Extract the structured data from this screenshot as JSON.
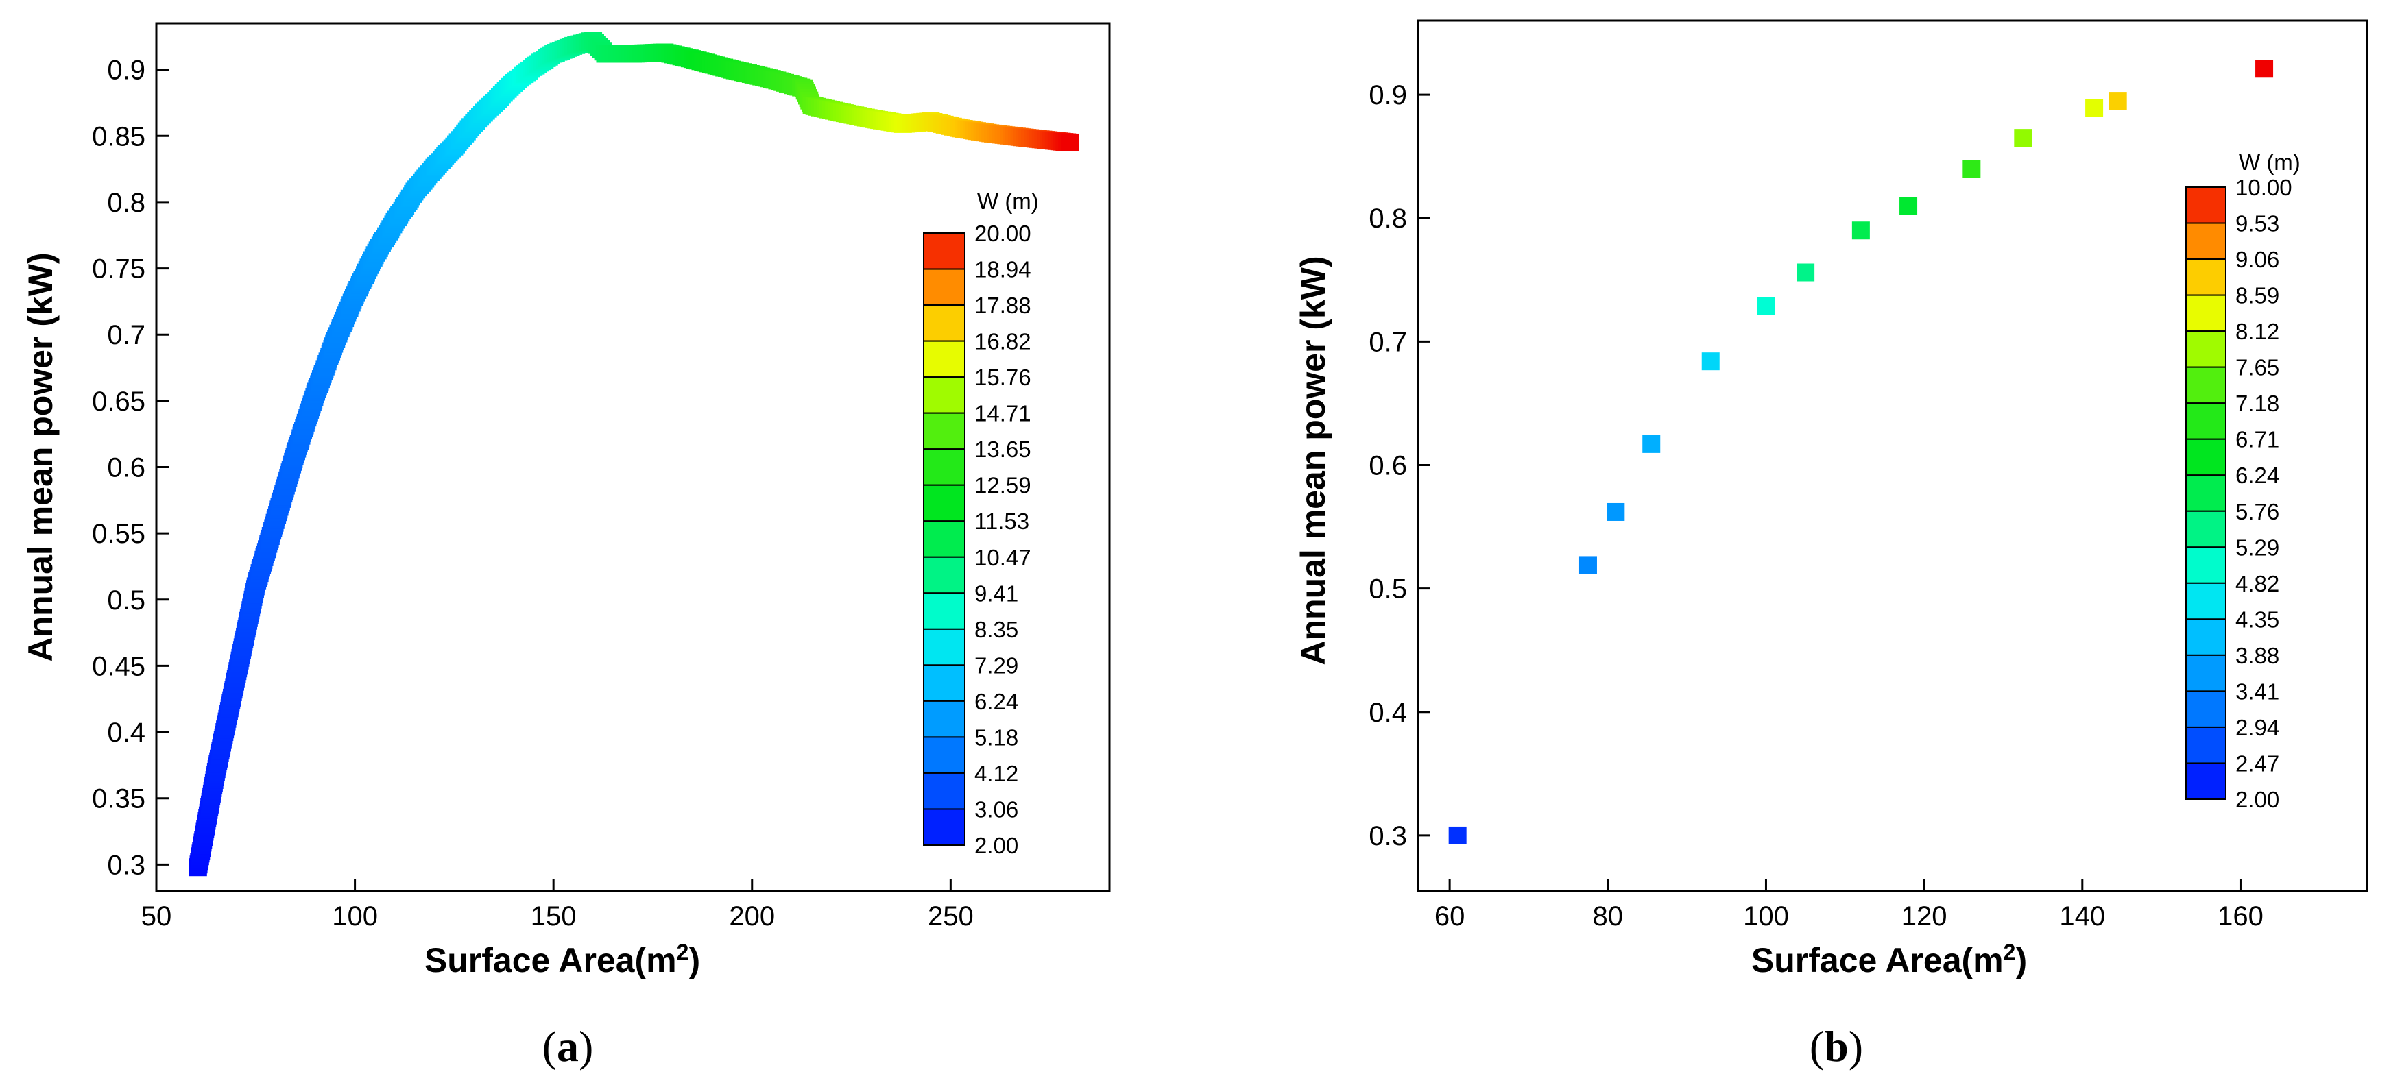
{
  "chart_data": [
    {
      "type": "scatter",
      "panel_label": "a",
      "xlabel": "Surface Area",
      "xlabel_unit": "(m",
      "xlabel_sup": "2",
      "xlabel_close": ")",
      "ylabel": "Annual mean power (kW)",
      "xlim": [
        50,
        290
      ],
      "ylim": [
        0.28,
        0.935
      ],
      "xticks": [
        50,
        100,
        150,
        200,
        250
      ],
      "yticks": [
        0.3,
        0.35,
        0.4,
        0.45,
        0.5,
        0.55,
        0.6,
        0.65,
        0.7,
        0.75,
        0.8,
        0.85,
        0.9
      ],
      "ytick_labels": [
        "0.3",
        "0.35",
        "0.4",
        "0.45",
        "0.5",
        "0.55",
        "0.6",
        "0.65",
        "0.7",
        "0.75",
        "0.8",
        "0.85",
        "0.9"
      ],
      "legend_title": "W (m)",
      "legend_position": "right",
      "legend_levels": [
        "20.00",
        "18.94",
        "17.88",
        "16.82",
        "15.76",
        "14.71",
        "13.65",
        "12.59",
        "11.53",
        "10.47",
        "9.41",
        "8.35",
        "7.29",
        "6.24",
        "5.18",
        "4.12",
        "3.06",
        "2.00"
      ],
      "color_range": [
        2.0,
        20.0
      ],
      "curve": [
        {
          "x": 60.5,
          "y": 0.298,
          "w": 2.0
        },
        {
          "x": 65,
          "y": 0.37,
          "w": 2.6
        },
        {
          "x": 70,
          "y": 0.44,
          "w": 3.0
        },
        {
          "x": 75,
          "y": 0.51,
          "w": 3.6
        },
        {
          "x": 80,
          "y": 0.56,
          "w": 3.9
        },
        {
          "x": 85,
          "y": 0.61,
          "w": 4.2
        },
        {
          "x": 90,
          "y": 0.655,
          "w": 4.6
        },
        {
          "x": 95,
          "y": 0.695,
          "w": 5.0
        },
        {
          "x": 100,
          "y": 0.73,
          "w": 5.3
        },
        {
          "x": 105,
          "y": 0.76,
          "w": 5.7
        },
        {
          "x": 110,
          "y": 0.785,
          "w": 6.0
        },
        {
          "x": 115,
          "y": 0.808,
          "w": 6.3
        },
        {
          "x": 120,
          "y": 0.826,
          "w": 6.6
        },
        {
          "x": 125,
          "y": 0.842,
          "w": 7.0
        },
        {
          "x": 130,
          "y": 0.86,
          "w": 7.4
        },
        {
          "x": 135,
          "y": 0.875,
          "w": 7.8
        },
        {
          "x": 140,
          "y": 0.89,
          "w": 8.3
        },
        {
          "x": 145,
          "y": 0.902,
          "w": 8.8
        },
        {
          "x": 150,
          "y": 0.912,
          "w": 9.3
        },
        {
          "x": 155,
          "y": 0.918,
          "w": 9.8
        },
        {
          "x": 160,
          "y": 0.922,
          "w": 10.3
        },
        {
          "x": 163,
          "y": 0.912,
          "w": 10.6
        },
        {
          "x": 170,
          "y": 0.912,
          "w": 11.0
        },
        {
          "x": 178,
          "y": 0.913,
          "w": 11.5
        },
        {
          "x": 185,
          "y": 0.908,
          "w": 12.0
        },
        {
          "x": 195,
          "y": 0.9,
          "w": 12.6
        },
        {
          "x": 205,
          "y": 0.893,
          "w": 13.3
        },
        {
          "x": 213,
          "y": 0.886,
          "w": 14.0
        },
        {
          "x": 215,
          "y": 0.873,
          "w": 14.3
        },
        {
          "x": 222,
          "y": 0.868,
          "w": 14.9
        },
        {
          "x": 230,
          "y": 0.863,
          "w": 15.6
        },
        {
          "x": 238,
          "y": 0.859,
          "w": 16.2
        },
        {
          "x": 245,
          "y": 0.861,
          "w": 16.8
        },
        {
          "x": 252,
          "y": 0.856,
          "w": 17.4
        },
        {
          "x": 260,
          "y": 0.852,
          "w": 18.2
        },
        {
          "x": 268,
          "y": 0.849,
          "w": 18.9
        },
        {
          "x": 274,
          "y": 0.847,
          "w": 19.4
        },
        {
          "x": 280,
          "y": 0.845,
          "w": 20.0
        }
      ]
    },
    {
      "type": "scatter",
      "panel_label": "b",
      "xlabel": "Surface Area",
      "xlabel_unit": "(m",
      "xlabel_sup": "2",
      "xlabel_close": ")",
      "ylabel": "Annual mean power (kW)",
      "xlim": [
        56,
        176
      ],
      "ylim": [
        0.255,
        0.96
      ],
      "xticks": [
        60,
        80,
        100,
        120,
        140,
        160
      ],
      "yticks": [
        0.3,
        0.4,
        0.5,
        0.6,
        0.7,
        0.8,
        0.9
      ],
      "ytick_labels": [
        "0.3",
        "0.4",
        "0.5",
        "0.6",
        "0.7",
        "0.8",
        "0.9"
      ],
      "legend_title": "W (m)",
      "legend_position": "right",
      "legend_levels": [
        "10.00",
        "9.53",
        "9.06",
        "8.59",
        "8.12",
        "7.65",
        "7.18",
        "6.71",
        "6.24",
        "5.76",
        "5.29",
        "4.82",
        "4.35",
        "3.88",
        "3.41",
        "2.94",
        "2.47",
        "2.00"
      ],
      "color_range": [
        2.0,
        10.0
      ],
      "points": [
        {
          "x": 61,
          "y": 0.3,
          "w": 2.4
        },
        {
          "x": 77.5,
          "y": 0.519,
          "w": 3.4
        },
        {
          "x": 81,
          "y": 0.562,
          "w": 3.6
        },
        {
          "x": 85.5,
          "y": 0.617,
          "w": 3.9
        },
        {
          "x": 93,
          "y": 0.684,
          "w": 4.4
        },
        {
          "x": 100,
          "y": 0.729,
          "w": 5.0
        },
        {
          "x": 105,
          "y": 0.756,
          "w": 5.5
        },
        {
          "x": 112,
          "y": 0.79,
          "w": 6.0
        },
        {
          "x": 118,
          "y": 0.81,
          "w": 6.3
        },
        {
          "x": 126,
          "y": 0.84,
          "w": 7.1
        },
        {
          "x": 132.5,
          "y": 0.865,
          "w": 7.8
        },
        {
          "x": 141.5,
          "y": 0.889,
          "w": 8.3
        },
        {
          "x": 144.5,
          "y": 0.895,
          "w": 8.8
        },
        {
          "x": 163,
          "y": 0.921,
          "w": 10.0
        }
      ]
    }
  ]
}
